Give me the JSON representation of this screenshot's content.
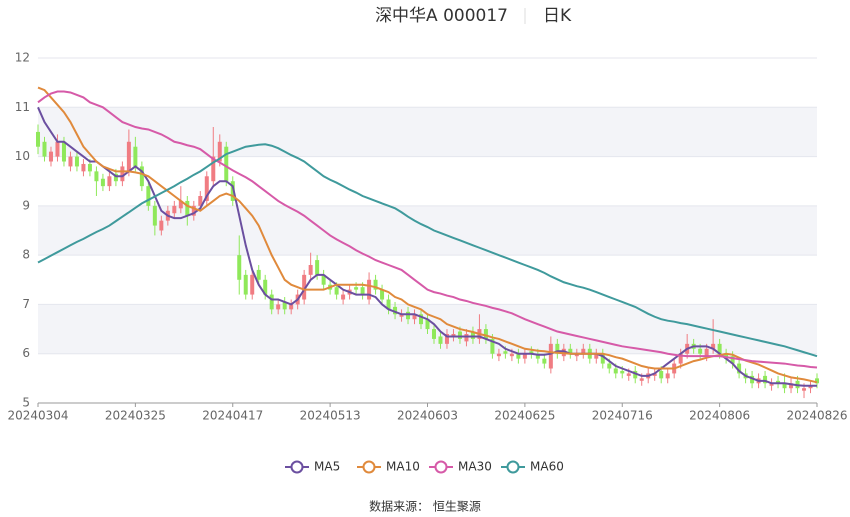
{
  "chart_data": {
    "type": "candlestick",
    "title": "深中华A 000017",
    "subtitle": "日K",
    "source": "数据来源： 恒生聚源",
    "categories": [
      "20240304",
      null,
      null,
      null,
      null,
      null,
      null,
      null,
      null,
      null,
      null,
      null,
      null,
      null,
      null,
      "20240325",
      null,
      null,
      null,
      null,
      null,
      null,
      null,
      null,
      null,
      null,
      null,
      null,
      null,
      null,
      "20240417",
      null,
      null,
      null,
      null,
      null,
      null,
      null,
      null,
      null,
      null,
      null,
      null,
      null,
      null,
      "20240513",
      null,
      null,
      null,
      null,
      null,
      null,
      null,
      null,
      null,
      null,
      null,
      null,
      null,
      null,
      "20240603",
      null,
      null,
      null,
      null,
      null,
      null,
      null,
      null,
      null,
      null,
      null,
      null,
      null,
      null,
      "20240625",
      null,
      null,
      null,
      null,
      null,
      null,
      null,
      null,
      null,
      null,
      null,
      null,
      null,
      null,
      "20240716",
      null,
      null,
      null,
      null,
      null,
      null,
      null,
      null,
      null,
      null,
      null,
      null,
      null,
      null,
      "20240806",
      null,
      null,
      null,
      null,
      null,
      null,
      null,
      null,
      null,
      null,
      null,
      null,
      null,
      null,
      "20240826"
    ],
    "open": [
      10.5,
      10.3,
      9.9,
      10.0,
      10.3,
      9.8,
      10.0,
      9.7,
      9.85,
      9.7,
      9.55,
      9.4,
      9.65,
      9.5,
      9.7,
      10.2,
      9.8,
      9.4,
      9.0,
      8.5,
      8.7,
      8.85,
      8.95,
      9.1,
      8.8,
      9.0,
      9.1,
      9.5,
      9.9,
      10.2,
      9.5,
      8.0,
      7.6,
      7.2,
      7.7,
      7.5,
      7.2,
      6.9,
      7.05,
      6.9,
      7.0,
      7.1,
      7.6,
      7.9,
      7.6,
      7.4,
      7.35,
      7.1,
      7.2,
      7.35,
      7.35,
      7.1,
      7.5,
      7.3,
      7.1,
      6.95,
      6.75,
      6.85,
      6.7,
      6.8,
      6.7,
      6.5,
      6.35,
      6.2,
      6.35,
      6.45,
      6.25,
      6.45,
      6.3,
      6.5,
      6.3,
      5.95,
      6.05,
      5.95,
      6.0,
      5.9,
      6.05,
      6.0,
      5.9,
      5.7,
      6.2,
      5.95,
      6.1,
      5.95,
      6.0,
      6.1,
      5.9,
      6.0,
      5.8,
      5.7,
      5.65,
      5.55,
      5.65,
      5.45,
      5.5,
      5.55,
      5.65,
      5.5,
      5.6,
      5.8,
      6.0,
      6.2,
      6.1,
      5.95,
      6.1,
      6.2,
      6.0,
      5.95,
      5.8,
      5.6,
      5.55,
      5.4,
      5.55,
      5.35,
      5.45,
      5.4,
      5.3,
      5.45,
      5.25,
      5.3,
      5.5
    ],
    "high": [
      10.65,
      10.4,
      10.2,
      10.45,
      10.4,
      10.1,
      10.1,
      9.95,
      9.95,
      9.8,
      9.65,
      9.7,
      9.75,
      9.9,
      10.55,
      10.4,
      9.9,
      9.5,
      9.1,
      8.8,
      9.0,
      9.1,
      9.4,
      9.2,
      9.1,
      9.3,
      9.7,
      10.6,
      10.45,
      10.3,
      9.6,
      8.4,
      7.7,
      7.7,
      7.8,
      7.6,
      7.3,
      7.1,
      7.15,
      7.1,
      7.3,
      7.7,
      8.05,
      8.0,
      7.7,
      7.5,
      7.45,
      7.3,
      7.4,
      7.45,
      7.45,
      7.65,
      7.6,
      7.4,
      7.2,
      7.05,
      6.9,
      6.95,
      6.9,
      6.9,
      6.8,
      6.6,
      6.45,
      6.5,
      6.5,
      6.55,
      6.5,
      6.55,
      6.8,
      6.6,
      6.4,
      6.1,
      6.15,
      6.1,
      6.1,
      6.1,
      6.15,
      6.1,
      6.0,
      6.35,
      6.3,
      6.2,
      6.2,
      6.1,
      6.2,
      6.2,
      6.1,
      6.1,
      5.9,
      5.8,
      5.75,
      5.7,
      5.75,
      5.6,
      5.7,
      5.7,
      5.75,
      5.7,
      5.9,
      6.1,
      6.4,
      6.3,
      6.2,
      6.2,
      6.7,
      6.3,
      6.1,
      6.05,
      5.9,
      5.7,
      5.65,
      5.6,
      5.65,
      5.5,
      5.55,
      5.6,
      5.5,
      5.55,
      5.4,
      5.45,
      5.6
    ],
    "low": [
      10.05,
      9.9,
      9.8,
      9.9,
      9.8,
      9.7,
      9.7,
      9.6,
      9.6,
      9.2,
      9.3,
      9.3,
      9.4,
      9.4,
      9.6,
      9.7,
      9.3,
      8.9,
      8.4,
      8.4,
      8.6,
      8.75,
      8.85,
      8.6,
      8.7,
      8.9,
      9.0,
      9.4,
      9.8,
      9.4,
      9.0,
      7.2,
      7.1,
      7.1,
      7.4,
      7.1,
      6.8,
      6.8,
      6.8,
      6.8,
      6.9,
      7.0,
      7.5,
      7.5,
      7.3,
      7.2,
      7.1,
      7.0,
      7.1,
      7.2,
      7.1,
      7.0,
      7.2,
      7.0,
      6.8,
      6.7,
      6.65,
      6.6,
      6.6,
      6.5,
      6.4,
      6.2,
      6.1,
      6.1,
      6.25,
      6.2,
      6.15,
      6.2,
      6.2,
      6.2,
      5.9,
      5.85,
      5.9,
      5.85,
      5.8,
      5.8,
      5.9,
      5.8,
      5.7,
      5.6,
      5.9,
      5.85,
      5.9,
      5.85,
      5.9,
      5.8,
      5.8,
      5.7,
      5.6,
      5.5,
      5.5,
      5.45,
      5.4,
      5.35,
      5.4,
      5.45,
      5.4,
      5.4,
      5.5,
      5.7,
      5.9,
      6.0,
      5.9,
      5.85,
      6.0,
      5.9,
      5.8,
      5.7,
      5.5,
      5.4,
      5.3,
      5.3,
      5.3,
      5.25,
      5.3,
      5.2,
      5.2,
      5.2,
      5.1,
      5.2,
      5.3
    ],
    "close": [
      10.2,
      10.0,
      10.1,
      10.3,
      9.9,
      10.0,
      9.8,
      9.85,
      9.7,
      9.5,
      9.4,
      9.6,
      9.5,
      9.8,
      10.3,
      9.8,
      9.4,
      9.0,
      8.6,
      8.7,
      8.9,
      9.0,
      9.1,
      8.8,
      9.0,
      9.2,
      9.6,
      10.0,
      10.3,
      9.5,
      9.1,
      7.5,
      7.2,
      7.6,
      7.5,
      7.2,
      6.9,
      7.0,
      6.9,
      7.0,
      7.2,
      7.6,
      7.8,
      7.6,
      7.4,
      7.3,
      7.2,
      7.2,
      7.3,
      7.3,
      7.2,
      7.5,
      7.3,
      7.1,
      6.9,
      6.8,
      6.8,
      6.7,
      6.8,
      6.6,
      6.5,
      6.3,
      6.2,
      6.4,
      6.4,
      6.3,
      6.4,
      6.3,
      6.5,
      6.3,
      6.0,
      6.0,
      6.0,
      6.0,
      5.9,
      6.0,
      6.0,
      5.9,
      5.8,
      6.2,
      6.0,
      6.1,
      6.0,
      6.0,
      6.1,
      5.9,
      6.0,
      5.8,
      5.7,
      5.6,
      5.6,
      5.6,
      5.5,
      5.5,
      5.6,
      5.6,
      5.5,
      5.6,
      5.8,
      6.0,
      6.2,
      6.1,
      6.0,
      6.1,
      6.2,
      6.0,
      5.9,
      5.8,
      5.6,
      5.5,
      5.4,
      5.5,
      5.4,
      5.4,
      5.4,
      5.3,
      5.4,
      5.3,
      5.3,
      5.35,
      5.4
    ],
    "up_color": "#f07c82",
    "down_color": "#8fe85a",
    "series": [
      {
        "name": "MA5",
        "color": "#6b4fa0",
        "values": [
          11.0,
          10.7,
          10.5,
          10.3,
          10.3,
          10.2,
          10.1,
          10.0,
          9.9,
          9.9,
          9.8,
          9.7,
          9.6,
          9.6,
          9.7,
          9.8,
          9.7,
          9.5,
          9.2,
          8.9,
          8.8,
          8.75,
          8.75,
          8.8,
          8.85,
          8.95,
          9.2,
          9.4,
          9.5,
          9.5,
          9.4,
          8.8,
          8.2,
          7.7,
          7.4,
          7.2,
          7.1,
          7.1,
          7.05,
          7.0,
          7.1,
          7.3,
          7.5,
          7.6,
          7.6,
          7.5,
          7.4,
          7.3,
          7.25,
          7.2,
          7.2,
          7.2,
          7.15,
          7.0,
          6.9,
          6.85,
          6.8,
          6.8,
          6.8,
          6.75,
          6.7,
          6.6,
          6.45,
          6.35,
          6.35,
          6.35,
          6.35,
          6.35,
          6.35,
          6.3,
          6.25,
          6.2,
          6.1,
          6.05,
          6.0,
          6.0,
          6.0,
          5.98,
          5.98,
          6.0,
          6.05,
          6.05,
          6.0,
          6.0,
          6.0,
          6.0,
          6.0,
          5.95,
          5.85,
          5.75,
          5.7,
          5.65,
          5.6,
          5.55,
          5.55,
          5.6,
          5.7,
          5.8,
          5.9,
          6.0,
          6.1,
          6.15,
          6.15,
          6.15,
          6.1,
          6.0,
          5.9,
          5.8,
          5.65,
          5.55,
          5.5,
          5.45,
          5.45,
          5.4,
          5.4,
          5.4,
          5.38,
          5.36,
          5.35,
          5.35,
          5.35
        ]
      },
      {
        "name": "MA10",
        "color": "#e08a3c",
        "values": [
          11.4,
          11.35,
          11.2,
          11.05,
          10.9,
          10.7,
          10.45,
          10.2,
          10.05,
          9.9,
          9.8,
          9.75,
          9.7,
          9.7,
          9.7,
          9.68,
          9.65,
          9.6,
          9.5,
          9.4,
          9.3,
          9.2,
          9.1,
          9.0,
          8.95,
          8.9,
          9.0,
          9.1,
          9.2,
          9.25,
          9.2,
          9.1,
          8.95,
          8.8,
          8.6,
          8.3,
          8.0,
          7.75,
          7.5,
          7.4,
          7.35,
          7.3,
          7.3,
          7.3,
          7.3,
          7.35,
          7.4,
          7.4,
          7.4,
          7.4,
          7.4,
          7.38,
          7.35,
          7.3,
          7.25,
          7.15,
          7.1,
          7.0,
          6.95,
          6.9,
          6.8,
          6.75,
          6.7,
          6.6,
          6.55,
          6.5,
          6.47,
          6.44,
          6.4,
          6.37,
          6.33,
          6.3,
          6.25,
          6.2,
          6.15,
          6.1,
          6.08,
          6.06,
          6.05,
          6.03,
          6.02,
          6.01,
          6.0,
          6.0,
          6.0,
          6.0,
          6.0,
          6.0,
          5.97,
          5.93,
          5.9,
          5.85,
          5.8,
          5.75,
          5.72,
          5.7,
          5.7,
          5.7,
          5.7,
          5.75,
          5.8,
          5.85,
          5.88,
          5.92,
          5.95,
          5.97,
          6.0,
          5.98,
          5.92,
          5.86,
          5.82,
          5.78,
          5.72,
          5.66,
          5.6,
          5.56,
          5.52,
          5.5,
          5.48,
          5.45,
          5.42
        ]
      },
      {
        "name": "MA30",
        "color": "#d65aa8",
        "values": [
          11.1,
          11.2,
          11.28,
          11.32,
          11.32,
          11.3,
          11.25,
          11.2,
          11.1,
          11.05,
          11.0,
          10.9,
          10.8,
          10.7,
          10.65,
          10.6,
          10.57,
          10.55,
          10.5,
          10.45,
          10.38,
          10.3,
          10.27,
          10.23,
          10.2,
          10.15,
          10.05,
          9.95,
          9.88,
          9.8,
          9.72,
          9.65,
          9.58,
          9.5,
          9.4,
          9.3,
          9.2,
          9.1,
          9.02,
          8.95,
          8.88,
          8.8,
          8.7,
          8.6,
          8.5,
          8.4,
          8.32,
          8.25,
          8.18,
          8.1,
          8.03,
          7.97,
          7.9,
          7.85,
          7.8,
          7.75,
          7.7,
          7.6,
          7.5,
          7.4,
          7.3,
          7.25,
          7.22,
          7.18,
          7.15,
          7.1,
          7.07,
          7.03,
          7.0,
          6.97,
          6.93,
          6.9,
          6.86,
          6.82,
          6.76,
          6.7,
          6.65,
          6.6,
          6.55,
          6.5,
          6.45,
          6.42,
          6.39,
          6.36,
          6.33,
          6.3,
          6.27,
          6.24,
          6.21,
          6.18,
          6.15,
          6.13,
          6.11,
          6.09,
          6.07,
          6.05,
          6.03,
          6.0,
          5.98,
          5.96,
          5.95,
          5.95,
          5.95,
          5.95,
          5.95,
          5.95,
          5.93,
          5.91,
          5.89,
          5.87,
          5.85,
          5.84,
          5.83,
          5.82,
          5.81,
          5.8,
          5.78,
          5.76,
          5.75,
          5.73,
          5.72
        ]
      },
      {
        "name": "MA60",
        "color": "#3f9a9c",
        "values": [
          7.85,
          7.92,
          7.99,
          8.06,
          8.13,
          8.2,
          8.27,
          8.33,
          8.4,
          8.47,
          8.53,
          8.6,
          8.69,
          8.78,
          8.87,
          8.96,
          9.05,
          9.12,
          9.19,
          9.26,
          9.33,
          9.4,
          9.48,
          9.55,
          9.63,
          9.7,
          9.79,
          9.88,
          9.96,
          10.05,
          10.1,
          10.15,
          10.2,
          10.22,
          10.24,
          10.25,
          10.22,
          10.17,
          10.1,
          10.03,
          9.97,
          9.9,
          9.8,
          9.7,
          9.6,
          9.53,
          9.47,
          9.4,
          9.33,
          9.27,
          9.2,
          9.15,
          9.1,
          9.05,
          9.0,
          8.95,
          8.87,
          8.78,
          8.7,
          8.63,
          8.57,
          8.5,
          8.45,
          8.4,
          8.35,
          8.3,
          8.25,
          8.2,
          8.15,
          8.1,
          8.05,
          8.0,
          7.95,
          7.9,
          7.85,
          7.8,
          7.75,
          7.7,
          7.64,
          7.57,
          7.51,
          7.45,
          7.41,
          7.37,
          7.34,
          7.3,
          7.25,
          7.2,
          7.15,
          7.1,
          7.05,
          7.0,
          6.95,
          6.88,
          6.81,
          6.75,
          6.7,
          6.67,
          6.65,
          6.62,
          6.6,
          6.57,
          6.54,
          6.51,
          6.48,
          6.45,
          6.42,
          6.39,
          6.36,
          6.33,
          6.3,
          6.27,
          6.24,
          6.21,
          6.18,
          6.15,
          6.11,
          6.07,
          6.03,
          5.99,
          5.95
        ]
      }
    ],
    "ylim": [
      5,
      12
    ],
    "yticks": [
      5,
      6,
      7,
      8,
      9,
      10,
      11,
      12
    ],
    "grid": true,
    "legend": "bottom"
  }
}
